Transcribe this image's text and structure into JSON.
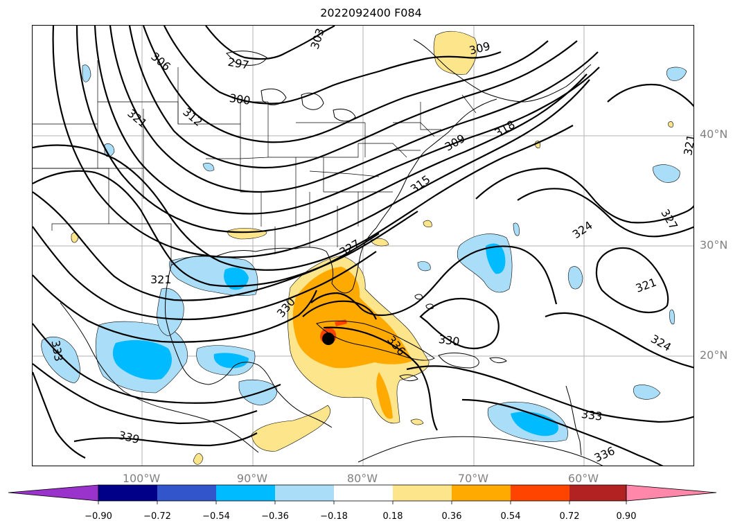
{
  "title": "2022092400 F084",
  "lat_labels": [
    "40°N",
    "30°N",
    "20°N"
  ],
  "lon_labels": [
    "100°W",
    "90°W",
    "80°W",
    "70°W",
    "60°W"
  ],
  "contour_labels": [
    "303",
    "306",
    "297",
    "300",
    "309",
    "321",
    "312",
    "318",
    "309",
    "315",
    "321",
    "327",
    "324",
    "327",
    "321",
    "330",
    "330",
    "336",
    "324",
    "333",
    "333",
    "339",
    "336",
    "321"
  ],
  "colorbar": {
    "ticks": [
      "−0.90",
      "−0.72",
      "−0.54",
      "−0.36",
      "−0.18",
      "0.18",
      "0.36",
      "0.54",
      "0.72",
      "0.90"
    ],
    "colors": [
      "#9933cc",
      "#000088",
      "#3355cc",
      "#00bbff",
      "#aaddf7",
      "#ffffff",
      "#fde58b",
      "#ffaa00",
      "#ff4400",
      "#b22222",
      "#ff88aa"
    ]
  },
  "fill_colors": {
    "light_blue": "#aaddf7",
    "blue": "#00bbff",
    "light_yellow": "#fde58b",
    "orange": "#ffaa00",
    "red": "#ff4400"
  },
  "marker_color": "#000000"
}
